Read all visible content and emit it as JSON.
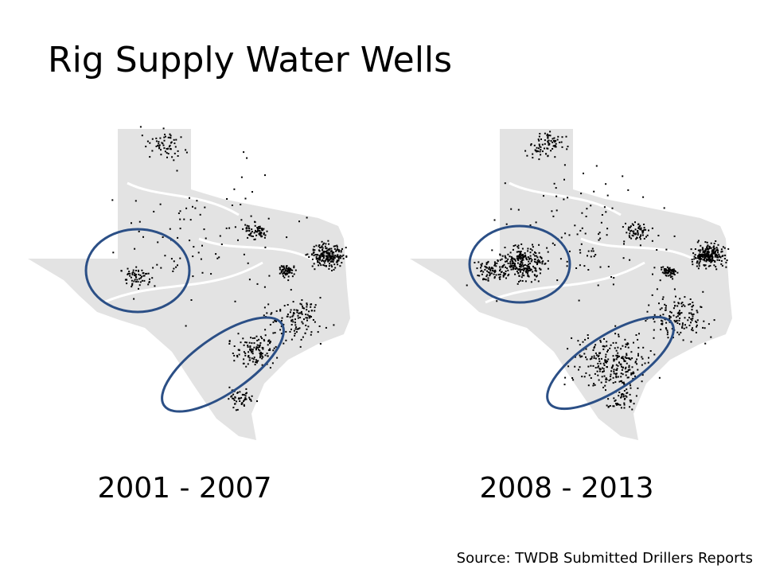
{
  "header": {
    "title": "Rig Supply Water Wells"
  },
  "panels": [
    {
      "label": "2001 - 2007"
    },
    {
      "label": "2008 - 2013"
    }
  ],
  "footer": {
    "source": "Source: TWDB Submitted Drillers Reports"
  }
}
